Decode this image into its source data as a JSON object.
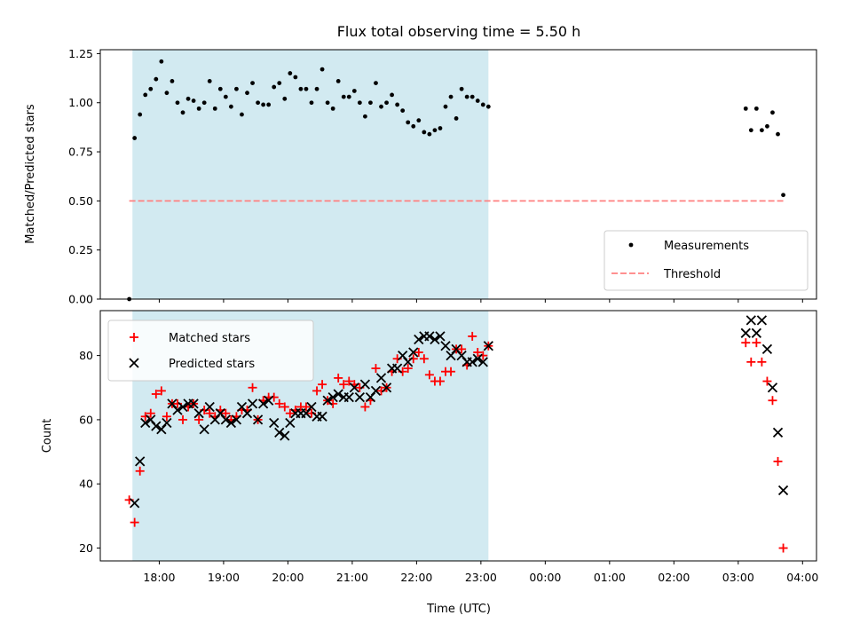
{
  "chart_data": {
    "title": "Flux total observing time = 5.50 h",
    "xlabel": "Time (UTC)",
    "x_type": "time",
    "x_tick_labels": [
      "18:00",
      "19:00",
      "20:00",
      "21:00",
      "22:00",
      "23:00",
      "00:00",
      "01:00",
      "02:00",
      "03:00",
      "04:00"
    ],
    "x_tick_times": [
      "2000-01-01T18:00",
      "2000-01-01T19:00",
      "2000-01-01T20:00",
      "2000-01-01T21:00",
      "2000-01-01T22:00",
      "2000-01-01T23:00",
      "2000-01-02T00:00",
      "2000-01-02T01:00",
      "2000-01-02T02:00",
      "2000-01-02T03:00",
      "2000-01-02T04:00"
    ],
    "xlim": [
      "2000-01-01T17:05",
      "2000-01-02T04:13"
    ],
    "highlight_span": [
      "2000-01-01T17:35",
      "2000-01-01T23:07"
    ],
    "highlight_color": "#add8e6",
    "panels": [
      {
        "type": "scatter",
        "ylabel": "Matched/Predicted stars",
        "ylim": [
          0,
          1.27
        ],
        "y_ticks": [
          0.0,
          0.25,
          0.5,
          0.75,
          1.0,
          1.25
        ],
        "y_tick_labels": [
          "0.00",
          "0.25",
          "0.50",
          "0.75",
          "1.00",
          "1.25"
        ],
        "legend_position": "lower-right",
        "series": [
          {
            "name": "Measurements",
            "marker": "dot",
            "color": "#000000",
            "x": [
              "2000-01-01T17:32",
              "2000-01-01T17:37",
              "2000-01-01T17:42",
              "2000-01-01T17:47",
              "2000-01-01T17:52",
              "2000-01-01T17:57",
              "2000-01-01T18:02",
              "2000-01-01T18:07",
              "2000-01-01T18:12",
              "2000-01-01T18:17",
              "2000-01-01T18:22",
              "2000-01-01T18:27",
              "2000-01-01T18:32",
              "2000-01-01T18:37",
              "2000-01-01T18:42",
              "2000-01-01T18:47",
              "2000-01-01T18:52",
              "2000-01-01T18:57",
              "2000-01-01T19:02",
              "2000-01-01T19:07",
              "2000-01-01T19:12",
              "2000-01-01T19:17",
              "2000-01-01T19:22",
              "2000-01-01T19:27",
              "2000-01-01T19:32",
              "2000-01-01T19:37",
              "2000-01-01T19:42",
              "2000-01-01T19:47",
              "2000-01-01T19:52",
              "2000-01-01T19:57",
              "2000-01-01T20:02",
              "2000-01-01T20:07",
              "2000-01-01T20:12",
              "2000-01-01T20:17",
              "2000-01-01T20:22",
              "2000-01-01T20:27",
              "2000-01-01T20:32",
              "2000-01-01T20:37",
              "2000-01-01T20:42",
              "2000-01-01T20:47",
              "2000-01-01T20:52",
              "2000-01-01T20:57",
              "2000-01-01T21:02",
              "2000-01-01T21:07",
              "2000-01-01T21:12",
              "2000-01-01T21:17",
              "2000-01-01T21:22",
              "2000-01-01T21:27",
              "2000-01-01T21:32",
              "2000-01-01T21:37",
              "2000-01-01T21:42",
              "2000-01-01T21:47",
              "2000-01-01T21:52",
              "2000-01-01T21:57",
              "2000-01-01T22:02",
              "2000-01-01T22:07",
              "2000-01-01T22:12",
              "2000-01-01T22:17",
              "2000-01-01T22:22",
              "2000-01-01T22:27",
              "2000-01-01T22:32",
              "2000-01-01T22:37",
              "2000-01-01T22:42",
              "2000-01-01T22:47",
              "2000-01-01T22:52",
              "2000-01-01T22:57",
              "2000-01-01T23:02",
              "2000-01-01T23:07",
              "2000-01-02T03:07",
              "2000-01-02T03:12",
              "2000-01-02T03:17",
              "2000-01-02T03:22",
              "2000-01-02T03:27",
              "2000-01-02T03:32",
              "2000-01-02T03:37",
              "2000-01-02T03:42"
            ],
            "y": [
              0.0,
              0.82,
              0.94,
              1.04,
              1.07,
              1.12,
              1.21,
              1.05,
              1.11,
              1.0,
              0.95,
              1.02,
              1.01,
              0.97,
              1.0,
              1.11,
              0.97,
              1.07,
              1.03,
              0.98,
              1.07,
              0.94,
              1.05,
              1.1,
              1.0,
              0.99,
              0.99,
              1.08,
              1.1,
              1.02,
              1.15,
              1.13,
              1.07,
              1.07,
              1.0,
              1.07,
              1.17,
              1.0,
              0.97,
              1.11,
              1.03,
              1.03,
              1.06,
              1.0,
              0.93,
              1.0,
              1.1,
              0.98,
              1.0,
              1.04,
              0.99,
              0.96,
              0.9,
              0.88,
              0.91,
              0.85,
              0.84,
              0.86,
              0.87,
              0.98,
              1.03,
              0.92,
              1.07,
              1.03,
              1.03,
              1.01,
              0.99,
              0.98,
              0.97,
              0.86,
              0.97,
              0.86,
              0.88,
              0.95,
              0.84,
              0.53
            ]
          }
        ],
        "threshold": {
          "name": "Threshold",
          "y": 0.5,
          "x": [
            "2000-01-01T17:32",
            "2000-01-02T03:42"
          ],
          "color": "#ff8080",
          "style": "dashed"
        }
      },
      {
        "type": "scatter",
        "ylabel": "Count",
        "ylim": [
          16,
          94
        ],
        "y_ticks": [
          20,
          40,
          60,
          80
        ],
        "y_tick_labels": [
          "20",
          "40",
          "60",
          "80"
        ],
        "legend_position": "upper-left",
        "series": [
          {
            "name": "Matched stars",
            "marker": "plus",
            "color": "#ff0000",
            "x": [
              "2000-01-01T17:32",
              "2000-01-01T17:37",
              "2000-01-01T17:42",
              "2000-01-01T17:47",
              "2000-01-01T17:52",
              "2000-01-01T17:57",
              "2000-01-01T18:02",
              "2000-01-01T18:07",
              "2000-01-01T18:12",
              "2000-01-01T18:17",
              "2000-01-01T18:22",
              "2000-01-01T18:27",
              "2000-01-01T18:32",
              "2000-01-01T18:37",
              "2000-01-01T18:42",
              "2000-01-01T18:47",
              "2000-01-01T18:52",
              "2000-01-01T18:57",
              "2000-01-01T19:02",
              "2000-01-01T19:07",
              "2000-01-01T19:12",
              "2000-01-01T19:17",
              "2000-01-01T19:22",
              "2000-01-01T19:27",
              "2000-01-01T19:32",
              "2000-01-01T19:37",
              "2000-01-01T19:42",
              "2000-01-01T19:47",
              "2000-01-01T19:52",
              "2000-01-01T19:57",
              "2000-01-01T20:02",
              "2000-01-01T20:07",
              "2000-01-01T20:12",
              "2000-01-01T20:17",
              "2000-01-01T20:22",
              "2000-01-01T20:27",
              "2000-01-01T20:32",
              "2000-01-01T20:37",
              "2000-01-01T20:42",
              "2000-01-01T20:47",
              "2000-01-01T20:52",
              "2000-01-01T20:57",
              "2000-01-01T21:02",
              "2000-01-01T21:07",
              "2000-01-01T21:12",
              "2000-01-01T21:17",
              "2000-01-01T21:22",
              "2000-01-01T21:27",
              "2000-01-01T21:32",
              "2000-01-01T21:37",
              "2000-01-01T21:42",
              "2000-01-01T21:47",
              "2000-01-01T21:52",
              "2000-01-01T21:57",
              "2000-01-01T22:02",
              "2000-01-01T22:07",
              "2000-01-01T22:12",
              "2000-01-01T22:17",
              "2000-01-01T22:22",
              "2000-01-01T22:27",
              "2000-01-01T22:32",
              "2000-01-01T22:37",
              "2000-01-01T22:42",
              "2000-01-01T22:47",
              "2000-01-01T22:52",
              "2000-01-01T22:57",
              "2000-01-01T23:02",
              "2000-01-01T23:07",
              "2000-01-02T03:07",
              "2000-01-02T03:12",
              "2000-01-02T03:17",
              "2000-01-02T03:22",
              "2000-01-02T03:27",
              "2000-01-02T03:32",
              "2000-01-02T03:37",
              "2000-01-02T03:42"
            ],
            "y": [
              35,
              28,
              44,
              61,
              62,
              68,
              69,
              61,
              65,
              65,
              60,
              64,
              65,
              60,
              63,
              62,
              61,
              63,
              62,
              60,
              61,
              63,
              63,
              70,
              60,
              66,
              67,
              67,
              65,
              64,
              62,
              63,
              64,
              64,
              62,
              69,
              71,
              66,
              65,
              73,
              71,
              72,
              71,
              70,
              64,
              66,
              76,
              69,
              70,
              75,
              79,
              75,
              76,
              79,
              81,
              79,
              74,
              72,
              72,
              75,
              75,
              82,
              82,
              77,
              86,
              81,
              80,
              83,
              84,
              78,
              84,
              78,
              72,
              66,
              47,
              20
            ]
          },
          {
            "name": "Predicted stars",
            "marker": "cross",
            "color": "#000000",
            "x": [
              "2000-01-01T17:37",
              "2000-01-01T17:42",
              "2000-01-01T17:47",
              "2000-01-01T17:52",
              "2000-01-01T17:57",
              "2000-01-01T18:02",
              "2000-01-01T18:07",
              "2000-01-01T18:12",
              "2000-01-01T18:17",
              "2000-01-01T18:22",
              "2000-01-01T18:27",
              "2000-01-01T18:32",
              "2000-01-01T18:37",
              "2000-01-01T18:42",
              "2000-01-01T18:47",
              "2000-01-01T18:52",
              "2000-01-01T18:57",
              "2000-01-01T19:02",
              "2000-01-01T19:07",
              "2000-01-01T19:12",
              "2000-01-01T19:17",
              "2000-01-01T19:22",
              "2000-01-01T19:27",
              "2000-01-01T19:32",
              "2000-01-01T19:37",
              "2000-01-01T19:42",
              "2000-01-01T19:47",
              "2000-01-01T19:52",
              "2000-01-01T19:57",
              "2000-01-01T20:02",
              "2000-01-01T20:07",
              "2000-01-01T20:12",
              "2000-01-01T20:17",
              "2000-01-01T20:22",
              "2000-01-01T20:27",
              "2000-01-01T20:32",
              "2000-01-01T20:37",
              "2000-01-01T20:42",
              "2000-01-01T20:47",
              "2000-01-01T20:52",
              "2000-01-01T20:57",
              "2000-01-01T21:02",
              "2000-01-01T21:07",
              "2000-01-01T21:12",
              "2000-01-01T21:17",
              "2000-01-01T21:22",
              "2000-01-01T21:27",
              "2000-01-01T21:32",
              "2000-01-01T21:37",
              "2000-01-01T21:42",
              "2000-01-01T21:47",
              "2000-01-01T21:52",
              "2000-01-01T21:57",
              "2000-01-01T22:02",
              "2000-01-01T22:07",
              "2000-01-01T22:12",
              "2000-01-01T22:17",
              "2000-01-01T22:22",
              "2000-01-01T22:27",
              "2000-01-01T22:32",
              "2000-01-01T22:37",
              "2000-01-01T22:42",
              "2000-01-01T22:47",
              "2000-01-01T22:52",
              "2000-01-01T22:57",
              "2000-01-01T23:02",
              "2000-01-01T23:07",
              "2000-01-02T03:07",
              "2000-01-02T03:12",
              "2000-01-02T03:17",
              "2000-01-02T03:22",
              "2000-01-02T03:27",
              "2000-01-02T03:32",
              "2000-01-02T03:37",
              "2000-01-02T03:42"
            ],
            "y": [
              34,
              47,
              59,
              60,
              58,
              57,
              59,
              65,
              63,
              64,
              65,
              65,
              62,
              57,
              64,
              60,
              62,
              60,
              59,
              60,
              64,
              62,
              65,
              60,
              65,
              66,
              59,
              56,
              55,
              59,
              62,
              62,
              62,
              64,
              61,
              61,
              66,
              67,
              68,
              67,
              67,
              70,
              67,
              71,
              67,
              69,
              73,
              70,
              76,
              76,
              80,
              78,
              81,
              85,
              86,
              86,
              85,
              86,
              83,
              80,
              82,
              80,
              78,
              78,
              79,
              78,
              83,
              87,
              91,
              87,
              91,
              82,
              70,
              56,
              38
            ]
          }
        ]
      }
    ]
  }
}
